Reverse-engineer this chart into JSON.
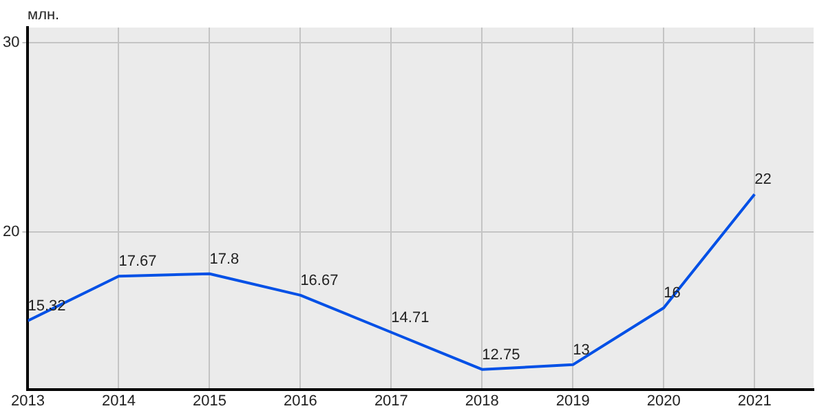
{
  "chart_data": {
    "type": "line",
    "ylabel": "млн.",
    "x": [
      2013,
      2014,
      2015,
      2016,
      2017,
      2018,
      2019,
      2020,
      2021
    ],
    "series": [
      {
        "color": "#0050e6",
        "values": [
          15.32,
          17.67,
          17.8,
          16.67,
          14.71,
          12.75,
          13,
          16,
          22
        ]
      }
    ],
    "xlim": [
      2013,
      2021.65
    ],
    "xticks": [
      2013,
      2014,
      2015,
      2016,
      2017,
      2018,
      2019,
      2020,
      2021
    ],
    "ylim": [
      11.7,
      30.8
    ],
    "yticks": [
      20,
      30
    ],
    "grid": true,
    "legend": false,
    "marker": "none",
    "line_style": "solid",
    "data_labels": true
  }
}
